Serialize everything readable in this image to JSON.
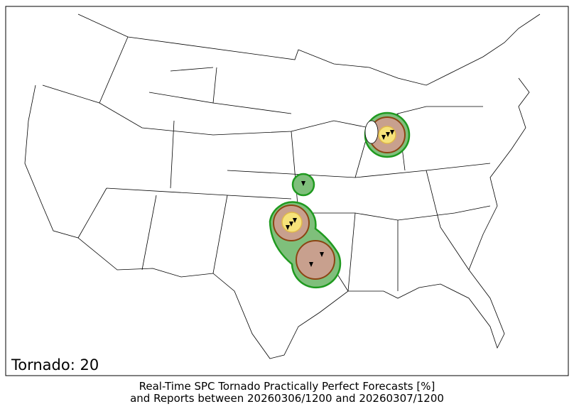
{
  "map": {
    "label": "Tornado: 20"
  },
  "caption": {
    "line1": "Real-Time SPC Tornado Practically Perfect Forecasts [%]",
    "line2": "and Reports between 20260306/1200 and 20260307/1200"
  }
}
